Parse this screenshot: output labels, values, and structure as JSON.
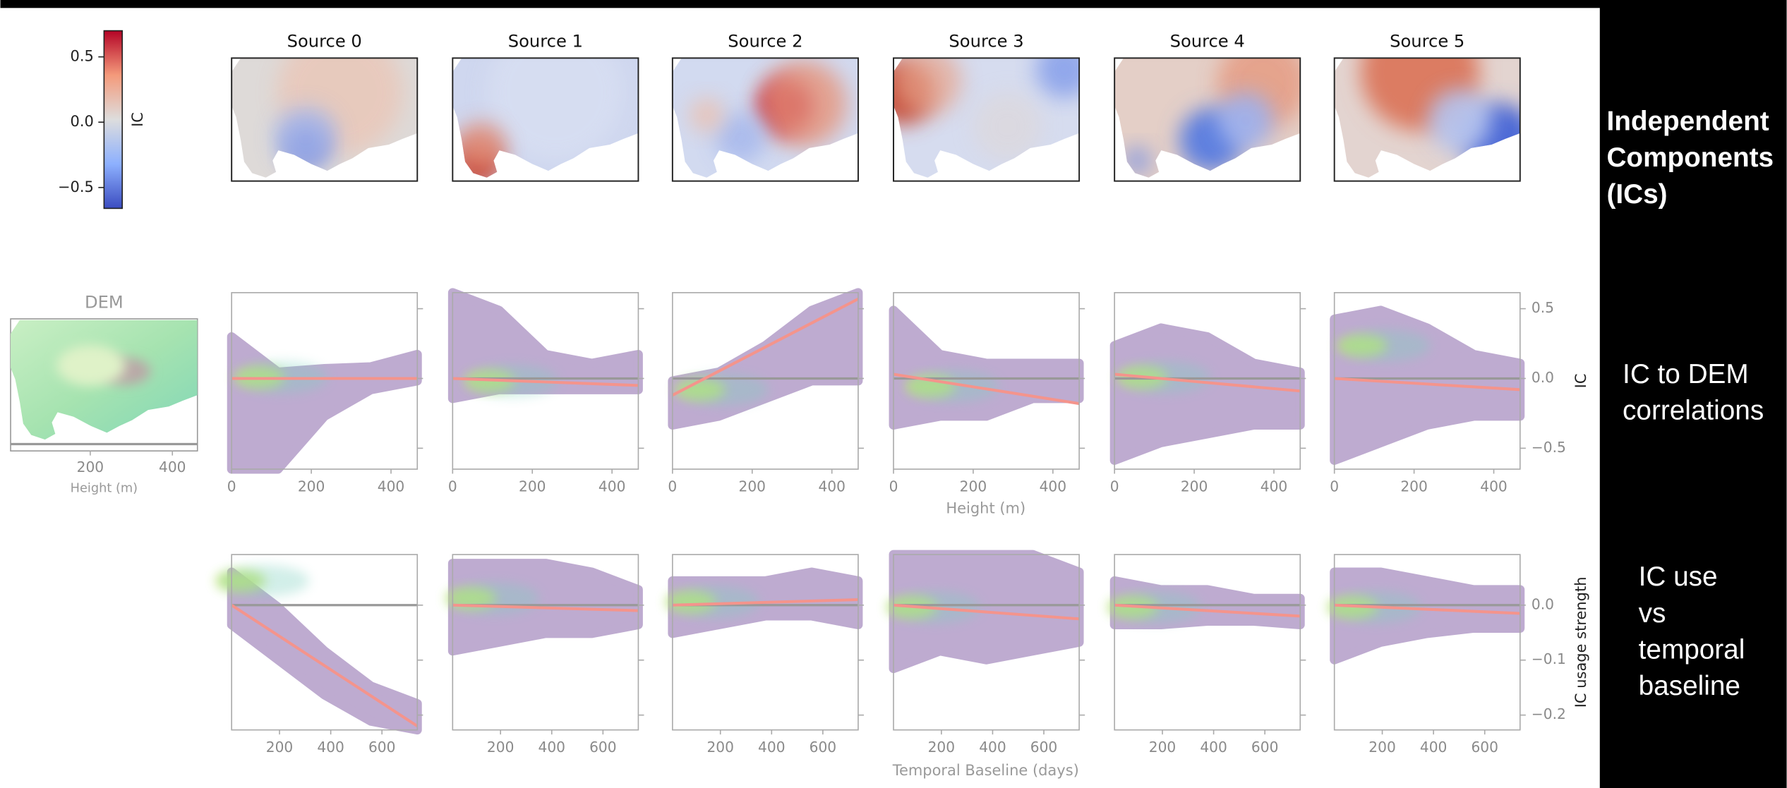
{
  "colorbar": {
    "label": "IC",
    "ylim": [
      -0.66,
      0.7
    ],
    "yticks": [
      0.5,
      {
        "value": 0,
        "label": "0.0"
      },
      {
        "value": -0.5,
        "label": "−0.5"
      }
    ]
  },
  "sources": [
    "Source 0",
    "Source 1",
    "Source 2",
    "Source 3",
    "Source 4",
    "Source 5"
  ],
  "row_labels": [
    [
      "Independent",
      "Components",
      " (ICs)"
    ],
    [
      "IC to DEM",
      "correlations"
    ],
    [
      "IC use",
      "vs",
      "temporal",
      "baseline"
    ]
  ],
  "dem": {
    "title": "DEM",
    "xlabel": "Height (m)",
    "xlim": [
      6,
      461
    ],
    "xticks": [
      200,
      400
    ]
  },
  "height_corr": {
    "type": "scatter",
    "xlabel": "Height (m)",
    "ylabel": "IC",
    "xlim": [
      0,
      466
    ],
    "ylim": [
      -0.65,
      0.615
    ],
    "xticks": [
      0,
      200,
      400
    ],
    "yticks": [
      0.5,
      {
        "value": 0,
        "label": "0.0"
      },
      {
        "value": -0.5,
        "label": "−0.5"
      }
    ],
    "fit_color": "#f4948c",
    "point_color": "#b39dc8",
    "fits": [
      [
        0,
        0
      ],
      [
        0,
        -0.05
      ],
      [
        -0.12,
        0.57
      ],
      [
        0.03,
        -0.18
      ],
      [
        0.03,
        -0.09
      ],
      [
        0,
        -0.08
      ]
    ]
  },
  "temporal": {
    "type": "scatter",
    "xlabel": "Temporal Baseline (days)",
    "ylabel": "IC usage strength",
    "xlim": [
      13,
      738
    ],
    "ylim": [
      -0.227,
      0.092
    ],
    "xticks": [
      200,
      400,
      600
    ],
    "yticks": [
      {
        "value": 0,
        "label": "0.0"
      },
      {
        "value": -0.1,
        "label": "−0.1"
      },
      {
        "value": -0.2,
        "label": "−0.2"
      }
    ],
    "fit_color": "#f4948c",
    "point_color": "#b39dc8",
    "fits": [
      [
        0,
        -0.22
      ],
      [
        0,
        -0.01
      ],
      [
        0,
        0.01
      ],
      [
        0,
        -0.025
      ],
      [
        0,
        -0.02
      ],
      [
        0,
        -0.015
      ]
    ]
  }
}
